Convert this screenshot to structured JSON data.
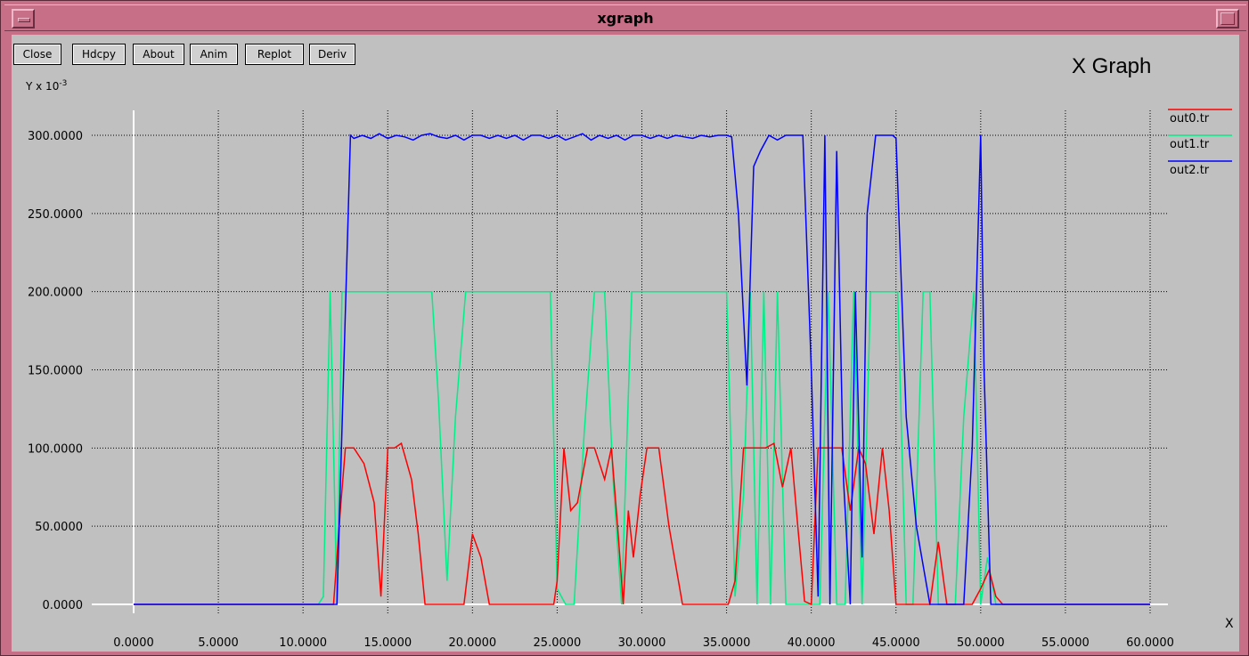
{
  "window": {
    "title": "xgraph"
  },
  "toolbar": {
    "buttons": [
      "Close",
      "Hdcpy",
      "About",
      "Anim",
      "Replot",
      "Deriv"
    ]
  },
  "graph_title": "X Graph",
  "y_unit": {
    "base": "Y x 10",
    "exp": "-3"
  },
  "x_unit": "X",
  "colors": {
    "out0": "#ff0000",
    "out1": "#00ee88",
    "out2": "#0000ff",
    "axis": "#ffffff",
    "grid": "#000000",
    "background": "#c0c0c0",
    "frame": "#c86f88"
  },
  "chart_data": {
    "type": "line",
    "title": "X Graph",
    "xlim": [
      0,
      60
    ],
    "ylim": [
      0,
      300
    ],
    "xticks": [
      "0.0000",
      "5.0000",
      "10.0000",
      "15.0000",
      "20.0000",
      "25.0000",
      "30.0000",
      "35.0000",
      "40.0000",
      "45.0000",
      "50.0000",
      "55.0000",
      "60.0000"
    ],
    "yticks": [
      "0.0000",
      "50.0000",
      "100.0000",
      "150.0000",
      "200.0000",
      "250.0000",
      "300.0000"
    ],
    "xtick_values": [
      0,
      5,
      10,
      15,
      20,
      25,
      30,
      35,
      40,
      45,
      50,
      55,
      60
    ],
    "ytick_values": [
      0,
      50,
      100,
      150,
      200,
      250,
      300
    ],
    "grid": true,
    "legend_position": "right",
    "series": [
      {
        "name": "out0.tr",
        "x": [
          0,
          11.8,
          12.2,
          12.5,
          13,
          13.6,
          14.2,
          14.6,
          15.0,
          15.4,
          15.8,
          16.4,
          16.8,
          17.2,
          19.5,
          20.0,
          20.5,
          21.0,
          24.8,
          25.0,
          25.4,
          25.8,
          26.2,
          26.8,
          27.2,
          27.8,
          28.2,
          28.6,
          28.9,
          29.2,
          29.5,
          29.9,
          30.3,
          30.6,
          31.0,
          31.6,
          32.4,
          33.6,
          34.3,
          35.1,
          35.5,
          36.0,
          36.4,
          36.8,
          37.3,
          37.8,
          38.3,
          38.8,
          39.2,
          39.6,
          40.0,
          40.4,
          40.9,
          41.3,
          41.8,
          42.3,
          42.8,
          43.2,
          43.7,
          44.2,
          44.6,
          45.0,
          45.4,
          46.0,
          47.0,
          47.5,
          48.0,
          48.5,
          49.0,
          49.5,
          50.0,
          50.5,
          50.9,
          51.3,
          60
        ],
        "y": [
          0,
          0,
          60,
          100,
          100,
          90,
          65,
          5,
          100,
          100,
          103,
          80,
          45,
          0,
          0,
          45,
          30,
          0,
          0,
          15,
          100,
          60,
          65,
          100,
          100,
          80,
          100,
          45,
          0,
          60,
          30,
          70,
          100,
          100,
          100,
          50,
          0,
          0,
          0,
          0,
          15,
          100,
          100,
          100,
          100,
          103,
          75,
          100,
          50,
          2,
          0,
          100,
          100,
          100,
          100,
          60,
          100,
          90,
          45,
          100,
          60,
          0,
          0,
          0,
          0,
          40,
          0,
          0,
          0,
          0,
          10,
          22,
          5,
          0,
          0
        ]
      },
      {
        "name": "out1.tr",
        "x": [
          0,
          10.9,
          11.2,
          11.6,
          12.0,
          12.3,
          12.8,
          13.2,
          17.6,
          18.0,
          18.5,
          19.0,
          19.6,
          20.0,
          24.6,
          25.0,
          25.5,
          26.0,
          26.6,
          27.2,
          27.8,
          28.3,
          28.8,
          29.4,
          29.8,
          30.2,
          30.6,
          34.5,
          35.0,
          35.5,
          36.0,
          36.4,
          36.8,
          37.2,
          37.6,
          38.0,
          38.5,
          39.0,
          39.5,
          40.0,
          40.5,
          41.0,
          41.5,
          42.0,
          42.5,
          43.0,
          43.5,
          44.0,
          44.6,
          45.1,
          45.6,
          46.0,
          46.6,
          47.0,
          47.5,
          48.0,
          48.5,
          49.0,
          49.6,
          50.0,
          50.4,
          50.9,
          51.3,
          60
        ],
        "y": [
          0,
          0,
          5,
          200,
          0,
          200,
          200,
          200,
          200,
          130,
          15,
          120,
          200,
          200,
          200,
          10,
          0,
          0,
          110,
          200,
          200,
          80,
          0,
          200,
          200,
          200,
          200,
          200,
          200,
          5,
          70,
          200,
          0,
          200,
          0,
          200,
          0,
          0,
          0,
          0,
          0,
          200,
          0,
          0,
          200,
          0,
          200,
          200,
          200,
          200,
          0,
          0,
          200,
          200,
          0,
          0,
          0,
          120,
          200,
          0,
          30,
          0,
          0,
          0
        ]
      },
      {
        "name": "out2.tr",
        "x": [
          0,
          12.0,
          12.4,
          12.8,
          13.0,
          13.5,
          14.0,
          14.5,
          15.0,
          15.5,
          16.0,
          16.5,
          17.0,
          17.5,
          18.0,
          18.5,
          19.0,
          19.5,
          20.0,
          20.5,
          21.0,
          21.5,
          22.0,
          22.5,
          23.0,
          23.5,
          24.0,
          24.5,
          25.0,
          25.5,
          26.0,
          26.5,
          27.0,
          27.5,
          28.0,
          28.5,
          29.0,
          29.5,
          30.0,
          30.5,
          31.0,
          31.5,
          32.0,
          32.5,
          33.0,
          33.5,
          34.0,
          34.5,
          35.0,
          35.3,
          35.7,
          36.2,
          36.6,
          37.0,
          37.5,
          38.0,
          38.5,
          39.0,
          39.5,
          40.0,
          40.4,
          40.8,
          41.1,
          41.5,
          41.9,
          42.3,
          42.6,
          43.0,
          43.3,
          43.8,
          44.3,
          44.8,
          45.0,
          45.6,
          46.2,
          47.0,
          47.5,
          48.0,
          48.5,
          49.0,
          49.5,
          50.0,
          50.2,
          50.6,
          51.0,
          51.3,
          60
        ],
        "y": [
          0,
          0,
          150,
          300,
          298,
          300,
          298,
          301,
          298,
          300,
          299,
          297,
          300,
          301,
          299,
          298,
          300,
          297,
          300,
          300,
          298,
          300,
          298,
          300,
          297,
          300,
          300,
          298,
          300,
          297,
          299,
          301,
          297,
          300,
          298,
          300,
          297,
          300,
          300,
          298,
          300,
          298,
          300,
          299,
          298,
          300,
          299,
          300,
          300,
          299,
          250,
          140,
          280,
          290,
          300,
          297,
          300,
          300,
          300,
          150,
          5,
          300,
          0,
          290,
          80,
          0,
          200,
          30,
          250,
          300,
          300,
          300,
          298,
          120,
          50,
          0,
          0,
          0,
          0,
          0,
          100,
          300,
          150,
          0,
          0,
          0,
          0
        ]
      }
    ]
  }
}
